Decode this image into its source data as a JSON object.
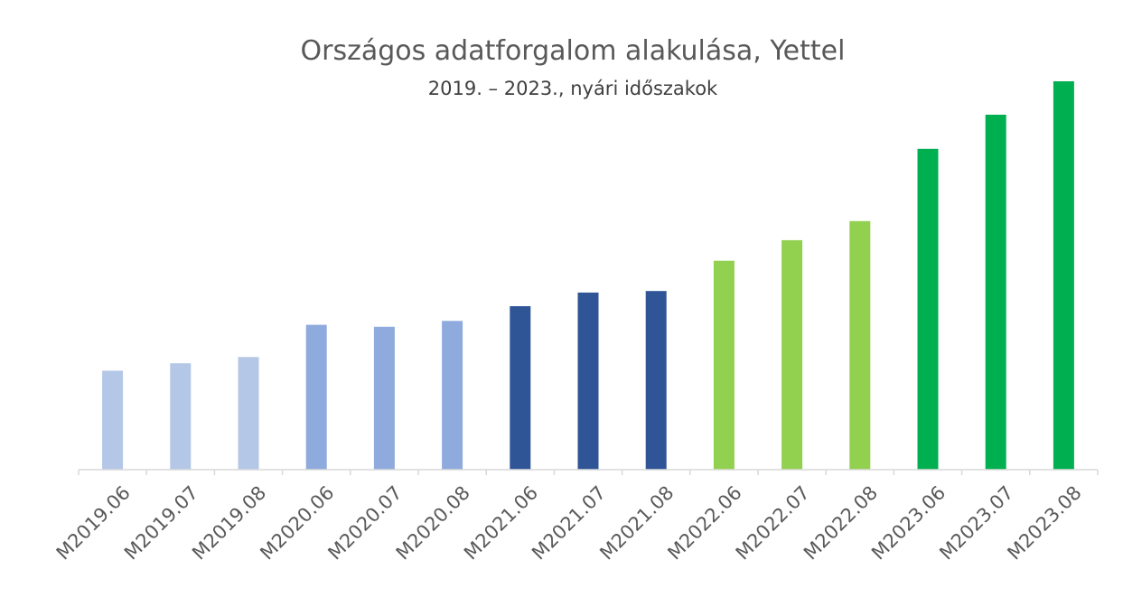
{
  "chart_data": {
    "type": "bar",
    "title": "Országos adatforgalom alakulása, Yettel",
    "subtitle": "2019. – 2023., nyári időszakok",
    "xlabel": "",
    "ylabel": "",
    "ylim": [
      0,
      100
    ],
    "grid": false,
    "legend": "none",
    "y_axis_labels_shown": false,
    "categories": [
      "M2019.06",
      "M2019.07",
      "M2019.08",
      "M2020.06",
      "M2020.07",
      "M2020.08",
      "M2021.06",
      "M2021.07",
      "M2021.08",
      "M2022.06",
      "M2022.07",
      "M2022.08",
      "M2023.06",
      "M2023.07",
      "M2023.08"
    ],
    "values": [
      25.5,
      27.4,
      29.0,
      37.3,
      36.8,
      38.3,
      42.1,
      45.6,
      46.0,
      53.8,
      59.1,
      64.0,
      82.6,
      91.4,
      100.0
    ],
    "bar_colors": [
      "#b4c7e7",
      "#b4c7e7",
      "#b4c7e7",
      "#8faadc",
      "#8faadc",
      "#8faadc",
      "#2f5597",
      "#2f5597",
      "#2f5597",
      "#92d050",
      "#92d050",
      "#92d050",
      "#00b050",
      "#00b050",
      "#00b050"
    ]
  }
}
